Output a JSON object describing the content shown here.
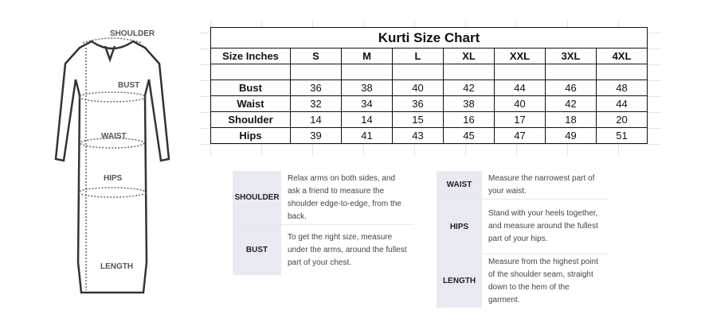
{
  "figure": {
    "labels": {
      "shoulder": "SHOULDER",
      "bust": "BUST",
      "waist": "WAIST",
      "hips": "HIPS",
      "length": "LENGTH"
    }
  },
  "table": {
    "title": "Kurti Size Chart",
    "header": [
      "Size Inches",
      "S",
      "M",
      "L",
      "XL",
      "XXL",
      "3XL",
      "4XL"
    ],
    "rows": [
      [
        "Bust",
        "36",
        "38",
        "40",
        "42",
        "44",
        "46",
        "48"
      ],
      [
        "Waist",
        "32",
        "34",
        "36",
        "38",
        "40",
        "42",
        "44"
      ],
      [
        "Shoulder",
        "14",
        "14",
        "15",
        "16",
        "17",
        "18",
        "20"
      ],
      [
        "Hips",
        "39",
        "41",
        "43",
        "45",
        "47",
        "49",
        "51"
      ]
    ]
  },
  "guide_left": [
    {
      "label": "SHOULDER",
      "text": "Relax arms on both sides, and ask a friend to measure the shoulder edge-to-edge, from the back."
    },
    {
      "label": "BUST",
      "text": "To get the right size, measure under the arms, around the fullest part of your chest."
    }
  ],
  "guide_right": [
    {
      "label": "WAIST",
      "text": "Measure the narrowest part of your waist."
    },
    {
      "label": "HIPS",
      "text": "Stand with your heels together, and measure around the fullest part of your hips."
    },
    {
      "label": "LENGTH",
      "text": "Measure from the highest point of the shoulder seam, straight down to the hem of the garment."
    }
  ]
}
